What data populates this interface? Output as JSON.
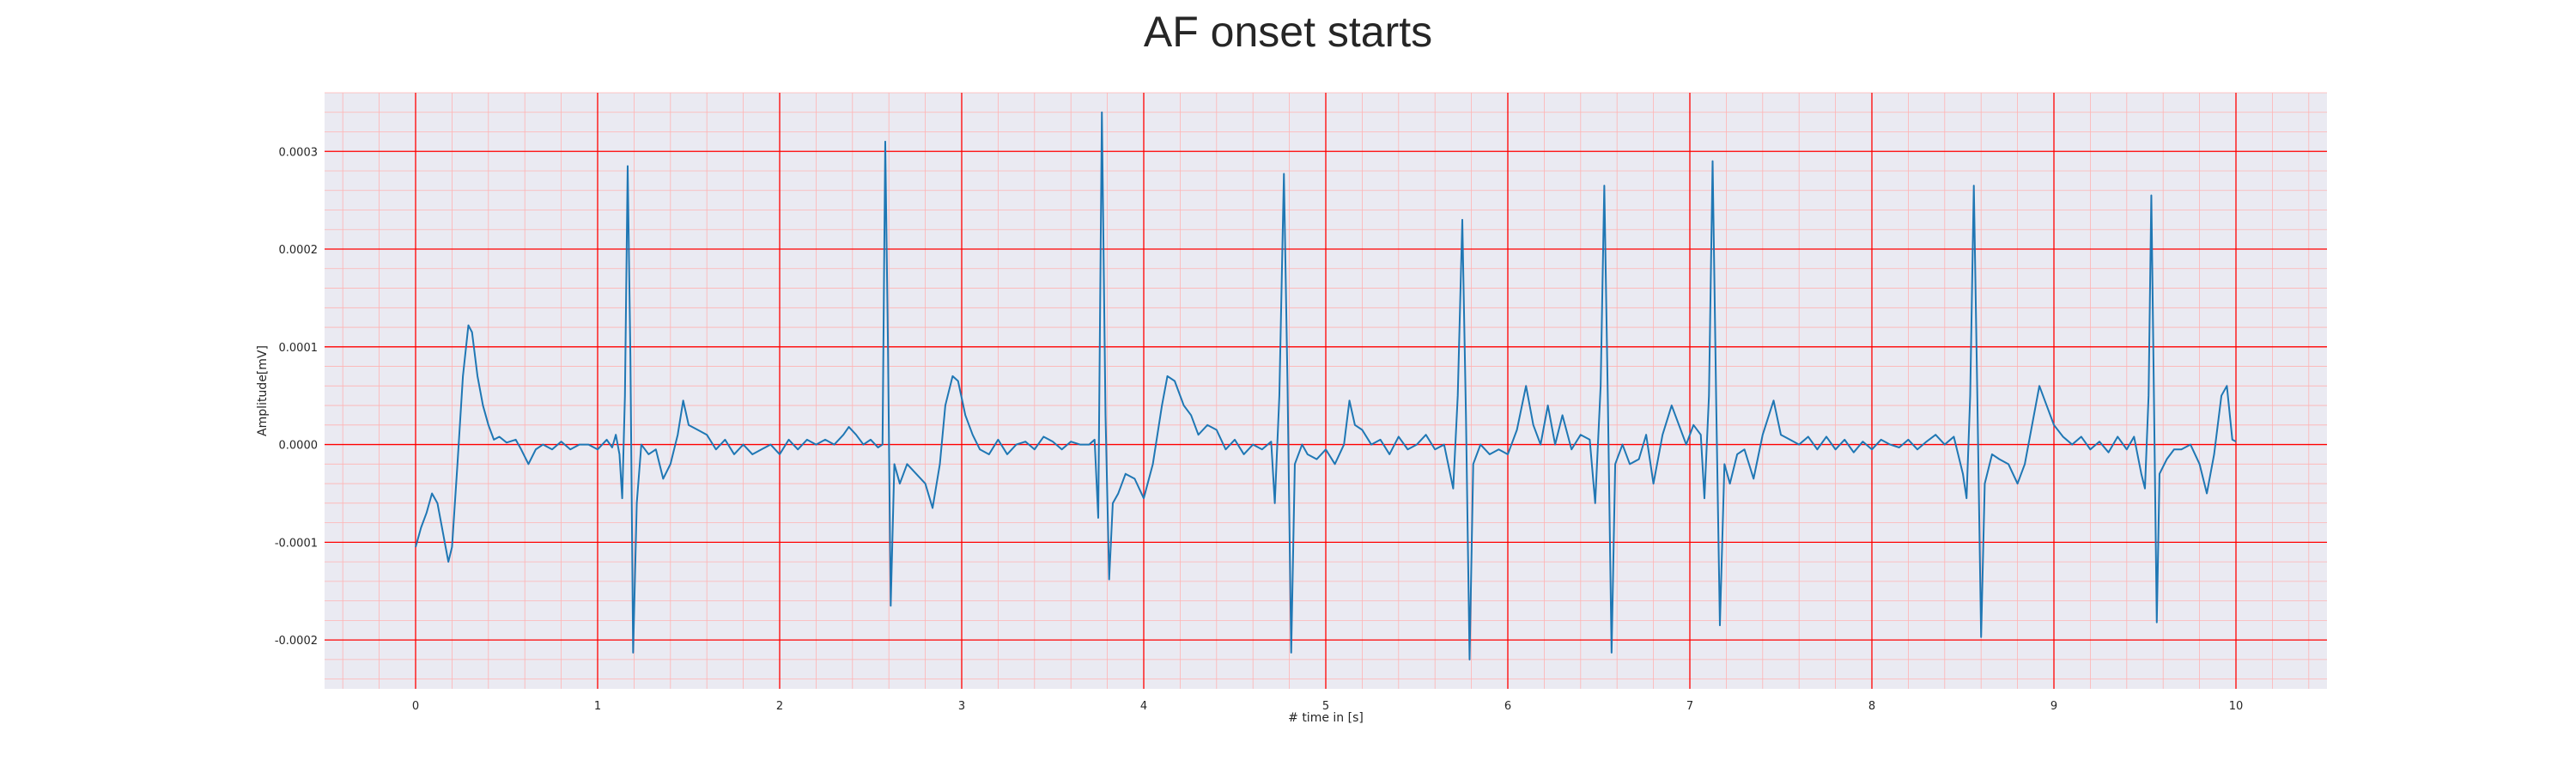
{
  "chart_data": {
    "type": "line",
    "title": "AF onset starts",
    "xlabel": "# time in [s]",
    "ylabel": "Amplitude[mV]",
    "xlim": [
      -0.5,
      10.5
    ],
    "ylim": [
      -0.00025,
      0.00036
    ],
    "xticks": [
      0,
      1,
      2,
      3,
      4,
      5,
      6,
      7,
      8,
      9,
      10
    ],
    "yticks": [
      -0.0002,
      -0.0001,
      0.0,
      0.0001,
      0.0002,
      0.0003
    ],
    "ytick_labels": [
      "-0.0002",
      "-0.0001",
      "0.0000",
      "0.0001",
      "0.0002",
      "0.0003"
    ],
    "grid": true,
    "minor_grid": true,
    "colors": {
      "plot_background": "#eaeaf2",
      "major_grid": "#ff0000",
      "minor_grid": "#ffb3b3",
      "line": "#1f77b4"
    },
    "series": [
      {
        "points": [
          [
            0.0,
            -0.000105
          ],
          [
            0.03,
            -8.5e-05
          ],
          [
            0.06,
            -7e-05
          ],
          [
            0.09,
            -5e-05
          ],
          [
            0.12,
            -6e-05
          ],
          [
            0.15,
            -9e-05
          ],
          [
            0.18,
            -0.00012
          ],
          [
            0.2,
            -0.000105
          ],
          [
            0.23,
            -2e-05
          ],
          [
            0.26,
            7e-05
          ],
          [
            0.29,
            0.000122
          ],
          [
            0.31,
            0.000115
          ],
          [
            0.34,
            7e-05
          ],
          [
            0.37,
            4e-05
          ],
          [
            0.4,
            2e-05
          ],
          [
            0.43,
            5e-06
          ],
          [
            0.46,
            8e-06
          ],
          [
            0.5,
            2e-06
          ],
          [
            0.55,
            5e-06
          ],
          [
            0.58,
            -5e-06
          ],
          [
            0.62,
            -2e-05
          ],
          [
            0.66,
            -5e-06
          ],
          [
            0.7,
            0.0
          ],
          [
            0.75,
            -5e-06
          ],
          [
            0.8,
            3e-06
          ],
          [
            0.85,
            -5e-06
          ],
          [
            0.9,
            0.0
          ],
          [
            0.95,
            0.0
          ],
          [
            1.0,
            -5e-06
          ],
          [
            1.05,
            5e-06
          ],
          [
            1.08,
            -3e-06
          ],
          [
            1.1,
            1e-05
          ],
          [
            1.12,
            -1e-05
          ],
          [
            1.135,
            -5.5e-05
          ],
          [
            1.15,
            5e-05
          ],
          [
            1.165,
            0.000285
          ],
          [
            1.18,
            9e-05
          ],
          [
            1.195,
            -0.000213
          ],
          [
            1.215,
            -6e-05
          ],
          [
            1.24,
            0.0
          ],
          [
            1.28,
            -1e-05
          ],
          [
            1.32,
            -5e-06
          ],
          [
            1.36,
            -3.5e-05
          ],
          [
            1.4,
            -2e-05
          ],
          [
            1.44,
            1e-05
          ],
          [
            1.47,
            4.5e-05
          ],
          [
            1.5,
            2e-05
          ],
          [
            1.55,
            1.5e-05
          ],
          [
            1.6,
            1e-05
          ],
          [
            1.65,
            -5e-06
          ],
          [
            1.7,
            5e-06
          ],
          [
            1.75,
            -1e-05
          ],
          [
            1.8,
            0.0
          ],
          [
            1.85,
            -1e-05
          ],
          [
            1.9,
            -5e-06
          ],
          [
            1.95,
            0.0
          ],
          [
            2.0,
            -1e-05
          ],
          [
            2.05,
            5e-06
          ],
          [
            2.1,
            -5e-06
          ],
          [
            2.15,
            5e-06
          ],
          [
            2.2,
            0.0
          ],
          [
            2.25,
            5e-06
          ],
          [
            2.3,
            0.0
          ],
          [
            2.35,
            1e-05
          ],
          [
            2.38,
            1.8e-05
          ],
          [
            2.42,
            1e-05
          ],
          [
            2.46,
            0.0
          ],
          [
            2.5,
            5e-06
          ],
          [
            2.54,
            -3e-06
          ],
          [
            2.565,
            0.0
          ],
          [
            2.58,
            0.00031
          ],
          [
            2.595,
            0.0001
          ],
          [
            2.61,
            -0.000165
          ],
          [
            2.63,
            -2e-05
          ],
          [
            2.66,
            -4e-05
          ],
          [
            2.7,
            -2e-05
          ],
          [
            2.75,
            -3e-05
          ],
          [
            2.8,
            -4e-05
          ],
          [
            2.84,
            -6.5e-05
          ],
          [
            2.88,
            -2e-05
          ],
          [
            2.91,
            4e-05
          ],
          [
            2.95,
            7e-05
          ],
          [
            2.98,
            6.5e-05
          ],
          [
            3.02,
            3e-05
          ],
          [
            3.06,
            1e-05
          ],
          [
            3.1,
            -5e-06
          ],
          [
            3.15,
            -1e-05
          ],
          [
            3.2,
            5e-06
          ],
          [
            3.25,
            -1e-05
          ],
          [
            3.3,
            0.0
          ],
          [
            3.35,
            3e-06
          ],
          [
            3.4,
            -5e-06
          ],
          [
            3.45,
            8e-06
          ],
          [
            3.5,
            3e-06
          ],
          [
            3.55,
            -5e-06
          ],
          [
            3.6,
            3e-06
          ],
          [
            3.65,
            0.0
          ],
          [
            3.7,
            0.0
          ],
          [
            3.73,
            5e-06
          ],
          [
            3.75,
            -7.5e-05
          ],
          [
            3.77,
            0.00034
          ],
          [
            3.79,
            3e-05
          ],
          [
            3.81,
            -0.000138
          ],
          [
            3.83,
            -6e-05
          ],
          [
            3.86,
            -5e-05
          ],
          [
            3.9,
            -3e-05
          ],
          [
            3.95,
            -3.5e-05
          ],
          [
            4.0,
            -5.5e-05
          ],
          [
            4.05,
            -2e-05
          ],
          [
            4.1,
            4e-05
          ],
          [
            4.13,
            7e-05
          ],
          [
            4.17,
            6.5e-05
          ],
          [
            4.22,
            4e-05
          ],
          [
            4.26,
            3e-05
          ],
          [
            4.3,
            1e-05
          ],
          [
            4.35,
            2e-05
          ],
          [
            4.4,
            1.5e-05
          ],
          [
            4.45,
            -5e-06
          ],
          [
            4.5,
            5e-06
          ],
          [
            4.55,
            -1e-05
          ],
          [
            4.6,
            0.0
          ],
          [
            4.65,
            -5e-06
          ],
          [
            4.7,
            3e-06
          ],
          [
            4.72,
            -6e-05
          ],
          [
            4.745,
            5e-05
          ],
          [
            4.77,
            0.000277
          ],
          [
            4.79,
            6e-05
          ],
          [
            4.81,
            -0.000213
          ],
          [
            4.83,
            -2e-05
          ],
          [
            4.87,
            0.0
          ],
          [
            4.9,
            -1e-05
          ],
          [
            4.95,
            -1.5e-05
          ],
          [
            5.0,
            -5e-06
          ],
          [
            5.05,
            -2e-05
          ],
          [
            5.1,
            0.0
          ],
          [
            5.13,
            4.5e-05
          ],
          [
            5.16,
            2e-05
          ],
          [
            5.2,
            1.5e-05
          ],
          [
            5.25,
            0.0
          ],
          [
            5.3,
            5e-06
          ],
          [
            5.35,
            -1e-05
          ],
          [
            5.4,
            8e-06
          ],
          [
            5.45,
            -5e-06
          ],
          [
            5.5,
            0.0
          ],
          [
            5.55,
            1e-05
          ],
          [
            5.6,
            -5e-06
          ],
          [
            5.65,
            0.0
          ],
          [
            5.7,
            -4.5e-05
          ],
          [
            5.725,
            5e-05
          ],
          [
            5.75,
            0.00023
          ],
          [
            5.77,
            3e-05
          ],
          [
            5.79,
            -0.00022
          ],
          [
            5.81,
            -2e-05
          ],
          [
            5.85,
            0.0
          ],
          [
            5.9,
            -1e-05
          ],
          [
            5.95,
            -5e-06
          ],
          [
            6.0,
            -1e-05
          ],
          [
            6.05,
            1.5e-05
          ],
          [
            6.1,
            6e-05
          ],
          [
            6.14,
            2e-05
          ],
          [
            6.18,
            0.0
          ],
          [
            6.22,
            4e-05
          ],
          [
            6.26,
            0.0
          ],
          [
            6.3,
            3e-05
          ],
          [
            6.35,
            -5e-06
          ],
          [
            6.4,
            1e-05
          ],
          [
            6.45,
            5e-06
          ],
          [
            6.48,
            -6e-05
          ],
          [
            6.51,
            6e-05
          ],
          [
            6.53,
            0.000265
          ],
          [
            6.55,
            4e-05
          ],
          [
            6.57,
            -0.000213
          ],
          [
            6.59,
            -2e-05
          ],
          [
            6.63,
            0.0
          ],
          [
            6.67,
            -2e-05
          ],
          [
            6.72,
            -1.5e-05
          ],
          [
            6.76,
            1e-05
          ],
          [
            6.8,
            -4e-05
          ],
          [
            6.85,
            1e-05
          ],
          [
            6.9,
            4e-05
          ],
          [
            6.94,
            2e-05
          ],
          [
            6.98,
            0.0
          ],
          [
            7.02,
            2e-05
          ],
          [
            7.06,
            1e-05
          ],
          [
            7.08,
            -5.5e-05
          ],
          [
            7.105,
            5e-05
          ],
          [
            7.125,
            0.00029
          ],
          [
            7.145,
            4e-05
          ],
          [
            7.165,
            -0.000185
          ],
          [
            7.19,
            -2e-05
          ],
          [
            7.22,
            -4e-05
          ],
          [
            7.26,
            -1e-05
          ],
          [
            7.3,
            -5e-06
          ],
          [
            7.35,
            -3.5e-05
          ],
          [
            7.4,
            1e-05
          ],
          [
            7.46,
            4.5e-05
          ],
          [
            7.5,
            1e-05
          ],
          [
            7.55,
            5e-06
          ],
          [
            7.6,
            0.0
          ],
          [
            7.65,
            8e-06
          ],
          [
            7.7,
            -5e-06
          ],
          [
            7.75,
            8e-06
          ],
          [
            7.8,
            -5e-06
          ],
          [
            7.85,
            5e-06
          ],
          [
            7.9,
            -8e-06
          ],
          [
            7.95,
            3e-06
          ],
          [
            8.0,
            -5e-06
          ],
          [
            8.05,
            5e-06
          ],
          [
            8.1,
            0.0
          ],
          [
            8.15,
            -3e-06
          ],
          [
            8.2,
            5e-06
          ],
          [
            8.25,
            -5e-06
          ],
          [
            8.3,
            3e-06
          ],
          [
            8.35,
            1e-05
          ],
          [
            8.4,
            0.0
          ],
          [
            8.45,
            8e-06
          ],
          [
            8.5,
            -3e-05
          ],
          [
            8.52,
            -5.5e-05
          ],
          [
            8.54,
            5e-05
          ],
          [
            8.56,
            0.000265
          ],
          [
            8.58,
            4e-05
          ],
          [
            8.6,
            -0.000197
          ],
          [
            8.62,
            -4e-05
          ],
          [
            8.66,
            -1e-05
          ],
          [
            8.7,
            -1.5e-05
          ],
          [
            8.75,
            -2e-05
          ],
          [
            8.8,
            -4e-05
          ],
          [
            8.84,
            -2e-05
          ],
          [
            8.88,
            2e-05
          ],
          [
            8.92,
            6e-05
          ],
          [
            8.96,
            4e-05
          ],
          [
            9.0,
            2e-05
          ],
          [
            9.05,
            8e-06
          ],
          [
            9.1,
            0.0
          ],
          [
            9.15,
            8e-06
          ],
          [
            9.2,
            -5e-06
          ],
          [
            9.25,
            3e-06
          ],
          [
            9.3,
            -8e-06
          ],
          [
            9.35,
            8e-06
          ],
          [
            9.4,
            -5e-06
          ],
          [
            9.44,
            8e-06
          ],
          [
            9.48,
            -3e-05
          ],
          [
            9.5,
            -4.5e-05
          ],
          [
            9.52,
            5e-05
          ],
          [
            9.535,
            0.000255
          ],
          [
            9.55,
            4e-05
          ],
          [
            9.565,
            -0.000182
          ],
          [
            9.58,
            -3e-05
          ],
          [
            9.62,
            -1.5e-05
          ],
          [
            9.66,
            -5e-06
          ],
          [
            9.7,
            -5e-06
          ],
          [
            9.75,
            0.0
          ],
          [
            9.8,
            -2e-05
          ],
          [
            9.84,
            -5e-05
          ],
          [
            9.88,
            -1e-05
          ],
          [
            9.92,
            5e-05
          ],
          [
            9.95,
            6e-05
          ],
          [
            9.98,
            5e-06
          ],
          [
            10.0,
            3e-06
          ]
        ]
      }
    ]
  }
}
